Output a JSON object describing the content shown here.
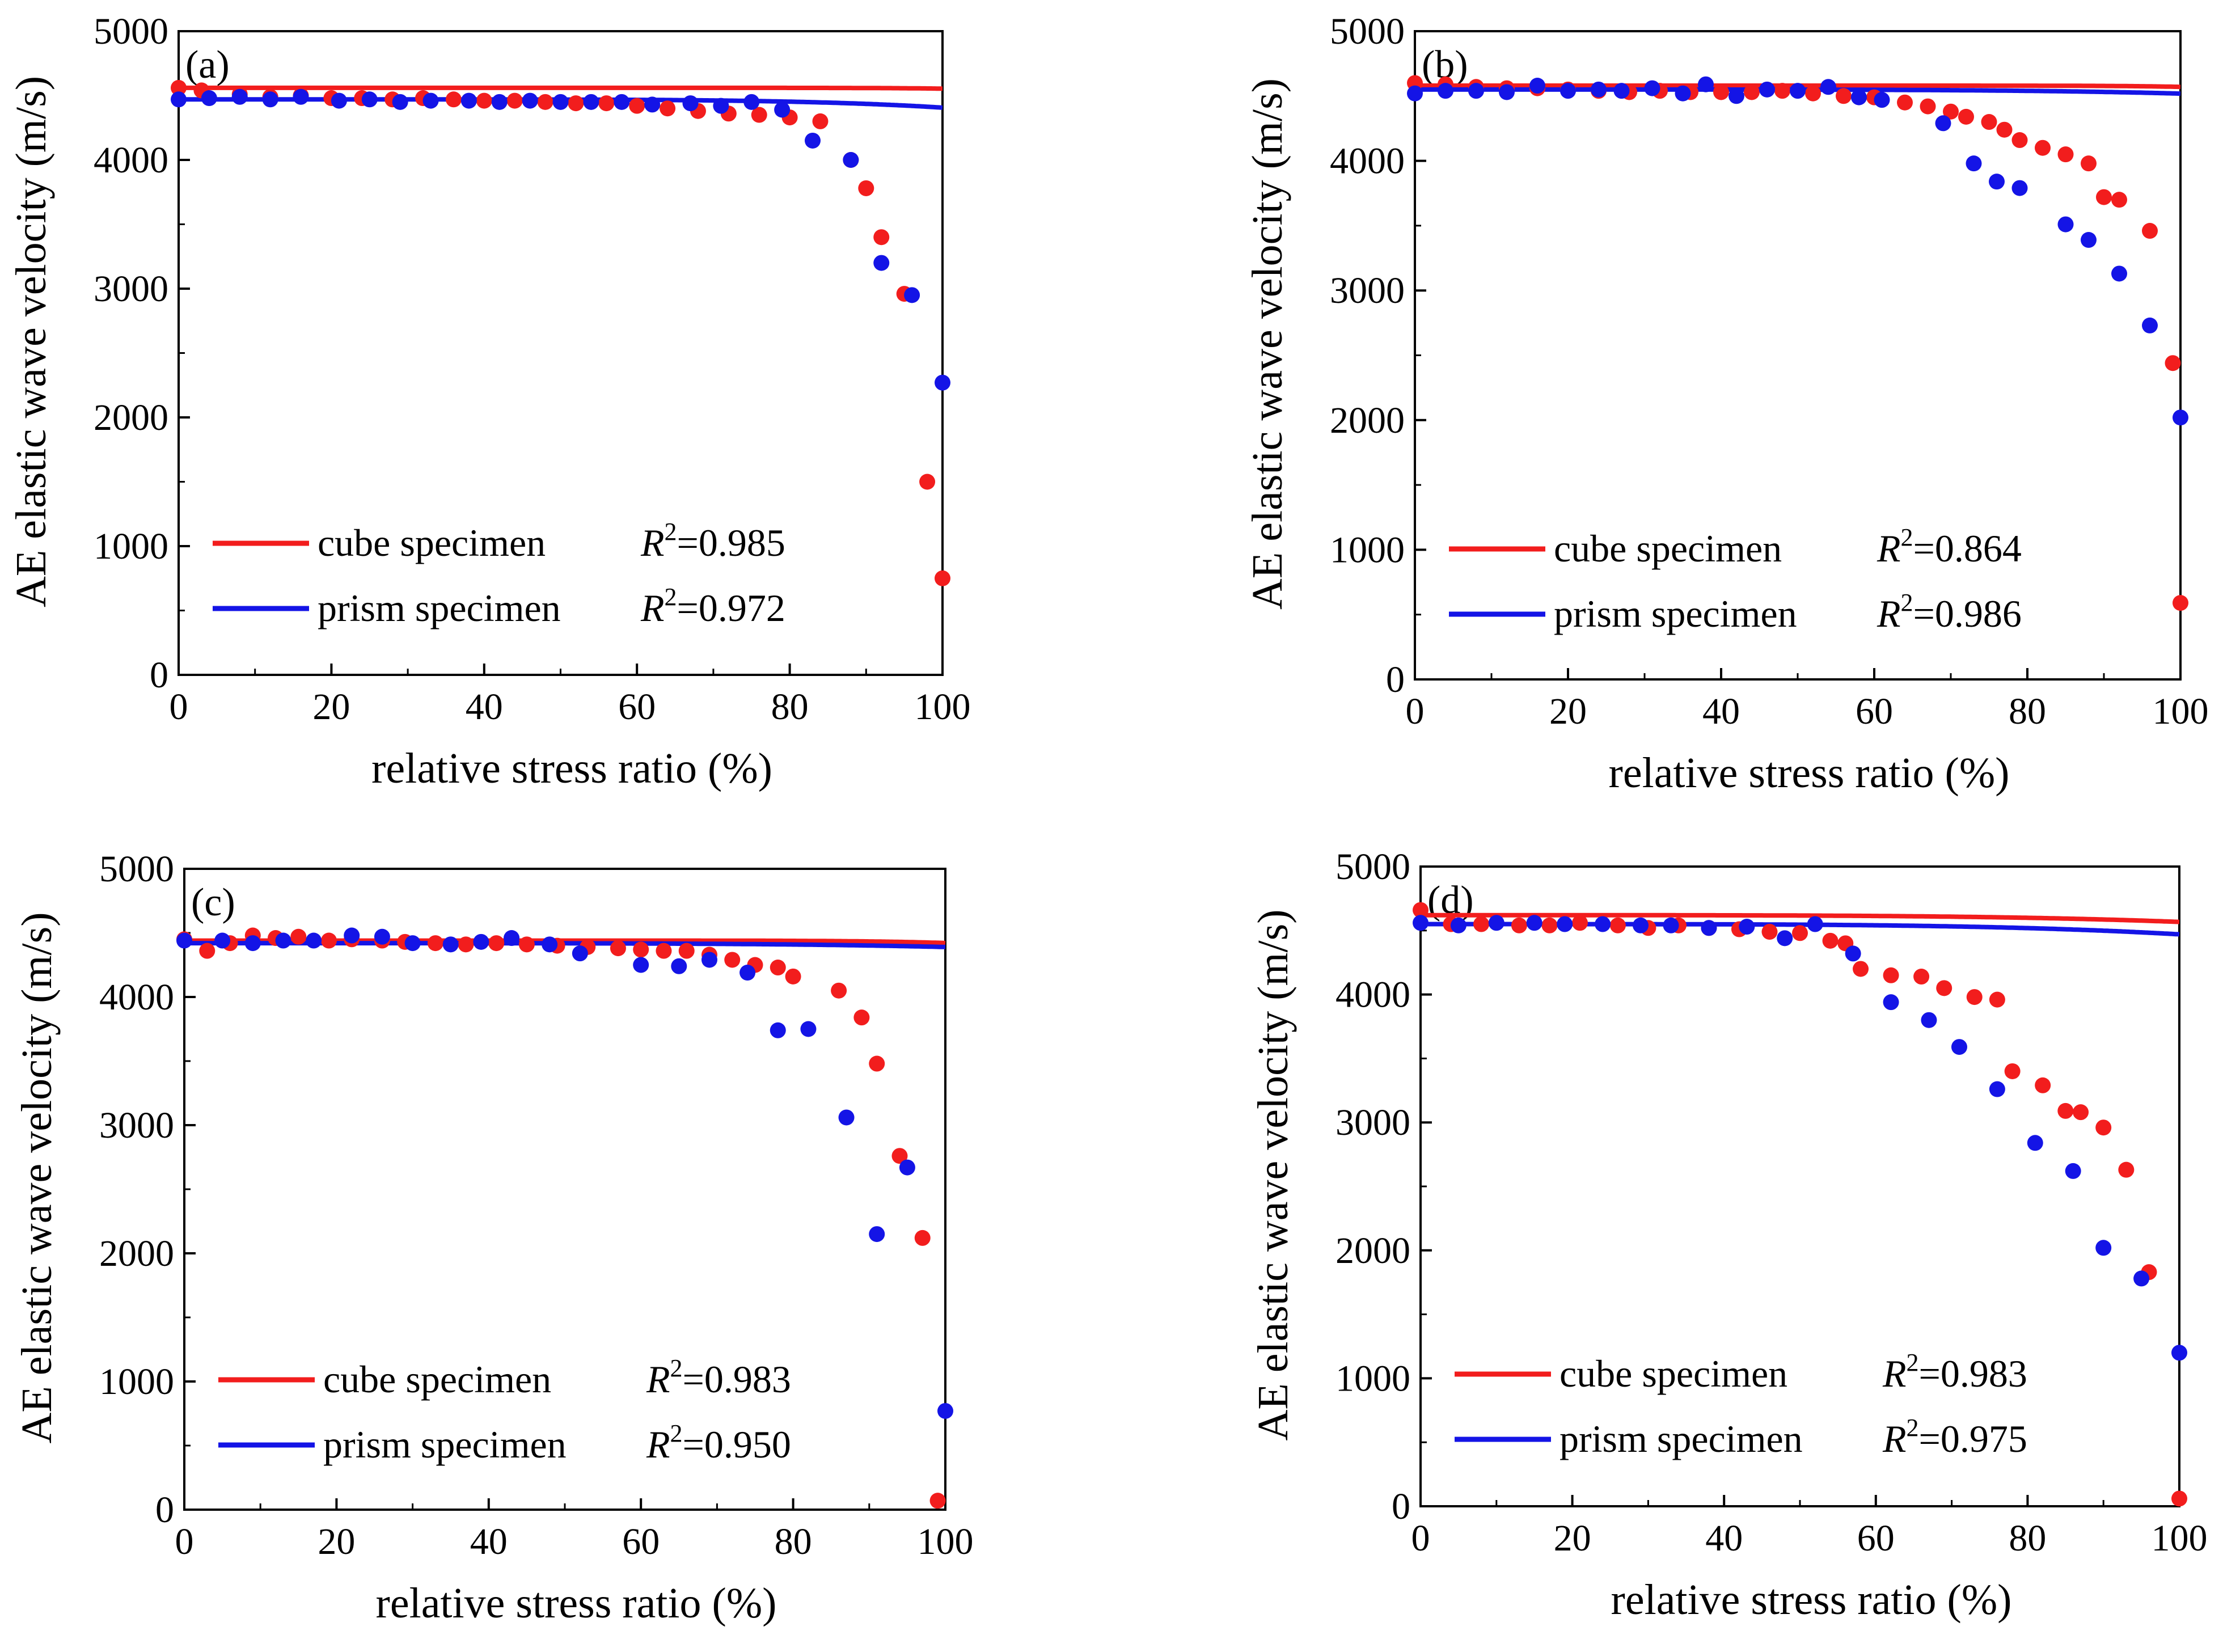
{
  "figure": {
    "colors": {
      "cube": "#f21d1d",
      "prism": "#1414e6",
      "axis": "#000000"
    }
  },
  "chart_data": [
    {
      "type": "scatter",
      "panel_label": "(a)",
      "xlabel": "relative stress ratio (%)",
      "ylabel": "AE elastic wave velocity (m/s)",
      "xlim": [
        0,
        100
      ],
      "ylim": [
        0,
        5000
      ],
      "xticks": [
        0,
        20,
        40,
        60,
        80,
        100
      ],
      "yticks": [
        0,
        1000,
        2000,
        3000,
        4000,
        5000
      ],
      "series": [
        {
          "name": "cube specimen",
          "r2_label": "R",
          "r2_sup": "2",
          "r2_value": "=0.985",
          "color": "#f21d1d",
          "fit": {
            "a": 4560,
            "b": 2.5e-26,
            "n": 13.2
          },
          "points": [
            [
              0,
              4560
            ],
            [
              3,
              4540
            ],
            [
              8,
              4510
            ],
            [
              12,
              4490
            ],
            [
              16,
              4500
            ],
            [
              20,
              4480
            ],
            [
              24,
              4480
            ],
            [
              28,
              4470
            ],
            [
              32,
              4480
            ],
            [
              36,
              4470
            ],
            [
              40,
              4460
            ],
            [
              44,
              4460
            ],
            [
              48,
              4450
            ],
            [
              52,
              4440
            ],
            [
              56,
              4440
            ],
            [
              60,
              4420
            ],
            [
              64,
              4400
            ],
            [
              68,
              4380
            ],
            [
              72,
              4360
            ],
            [
              76,
              4350
            ],
            [
              80,
              4330
            ],
            [
              84,
              4300
            ],
            [
              88,
              4000
            ],
            [
              90,
              3780
            ],
            [
              92,
              3400
            ],
            [
              95,
              2960
            ],
            [
              98,
              1500
            ],
            [
              100,
              750
            ]
          ]
        },
        {
          "name": "prism specimen",
          "r2_label": "R",
          "r2_sup": "2",
          "r2_value": "=0.972",
          "color": "#1414e6",
          "fit": {
            "a": 4470,
            "b": 1.6e-10,
            "n": 5.8
          },
          "points": [
            [
              0,
              4470
            ],
            [
              4,
              4480
            ],
            [
              8,
              4490
            ],
            [
              12,
              4470
            ],
            [
              16,
              4490
            ],
            [
              21,
              4460
            ],
            [
              25,
              4470
            ],
            [
              29,
              4450
            ],
            [
              33,
              4460
            ],
            [
              38,
              4460
            ],
            [
              42,
              4450
            ],
            [
              46,
              4460
            ],
            [
              50,
              4450
            ],
            [
              54,
              4450
            ],
            [
              58,
              4450
            ],
            [
              62,
              4430
            ],
            [
              67,
              4440
            ],
            [
              71,
              4420
            ],
            [
              75,
              4450
            ],
            [
              79,
              4390
            ],
            [
              83,
              4150
            ],
            [
              88,
              4000
            ],
            [
              92,
              3200
            ],
            [
              96,
              2950
            ],
            [
              100,
              2270
            ]
          ]
        }
      ]
    },
    {
      "type": "scatter",
      "panel_label": "(b)",
      "xlabel": "relative stress ratio (%)",
      "ylabel": "AE elastic wave velocity (m/s)",
      "xlim": [
        0,
        100
      ],
      "ylim": [
        0,
        5000
      ],
      "xticks": [
        0,
        20,
        40,
        60,
        80,
        100
      ],
      "yticks": [
        0,
        1000,
        2000,
        3000,
        4000,
        5000
      ],
      "series": [
        {
          "name": "cube specimen",
          "r2_label": "R",
          "r2_sup": "2",
          "r2_value": "=0.864",
          "color": "#f21d1d",
          "fit": {
            "a": 4580,
            "b": 1.5e-26,
            "n": 13.4
          },
          "points": [
            [
              0,
              4600
            ],
            [
              4,
              4590
            ],
            [
              8,
              4570
            ],
            [
              12,
              4560
            ],
            [
              16,
              4560
            ],
            [
              20,
              4550
            ],
            [
              24,
              4540
            ],
            [
              28,
              4530
            ],
            [
              32,
              4540
            ],
            [
              36,
              4530
            ],
            [
              40,
              4530
            ],
            [
              44,
              4530
            ],
            [
              48,
              4540
            ],
            [
              52,
              4520
            ],
            [
              56,
              4500
            ],
            [
              60,
              4490
            ],
            [
              64,
              4450
            ],
            [
              67,
              4420
            ],
            [
              70,
              4380
            ],
            [
              72,
              4340
            ],
            [
              75,
              4300
            ],
            [
              77,
              4240
            ],
            [
              79,
              4160
            ],
            [
              82,
              4100
            ],
            [
              85,
              4050
            ],
            [
              88,
              3980
            ],
            [
              90,
              3720
            ],
            [
              92,
              3700
            ],
            [
              96,
              3460
            ],
            [
              99,
              2440
            ],
            [
              100,
              590
            ]
          ]
        },
        {
          "name": "prism specimen",
          "r2_label": "R",
          "r2_sup": "2",
          "r2_value": "=0.986",
          "color": "#1414e6",
          "fit": {
            "a": 4550,
            "b": 2.5e-09,
            "n": 5.05
          },
          "points": [
            [
              0,
              4520
            ],
            [
              4,
              4540
            ],
            [
              8,
              4540
            ],
            [
              12,
              4530
            ],
            [
              16,
              4580
            ],
            [
              20,
              4540
            ],
            [
              24,
              4550
            ],
            [
              27,
              4540
            ],
            [
              31,
              4560
            ],
            [
              35,
              4520
            ],
            [
              38,
              4590
            ],
            [
              42,
              4500
            ],
            [
              46,
              4550
            ],
            [
              50,
              4540
            ],
            [
              54,
              4570
            ],
            [
              58,
              4490
            ],
            [
              61,
              4470
            ],
            [
              69,
              4290
            ],
            [
              73,
              3980
            ],
            [
              76,
              3840
            ],
            [
              79,
              3790
            ],
            [
              85,
              3510
            ],
            [
              88,
              3390
            ],
            [
              92,
              3130
            ],
            [
              96,
              2730
            ],
            [
              100,
              2020
            ]
          ]
        }
      ]
    },
    {
      "type": "scatter",
      "panel_label": "(c)",
      "xlabel": "relative stress ratio (%)",
      "ylabel": "AE elastic wave velocity (m/s)",
      "xlim": [
        0,
        100
      ],
      "ylim": [
        0,
        5000
      ],
      "xticks": [
        0,
        20,
        40,
        60,
        80,
        100
      ],
      "yticks": [
        0,
        1000,
        2000,
        3000,
        4000,
        5000
      ],
      "series": [
        {
          "name": "cube specimen",
          "r2_label": "R",
          "r2_sup": "2",
          "r2_value": "=0.983",
          "color": "#f21d1d",
          "fit": {
            "a": 4440,
            "b": 1.9e-19,
            "n": 10.0
          },
          "points": [
            [
              0,
              4450
            ],
            [
              3,
              4360
            ],
            [
              6,
              4420
            ],
            [
              9,
              4480
            ],
            [
              12,
              4460
            ],
            [
              15,
              4470
            ],
            [
              19,
              4440
            ],
            [
              22,
              4450
            ],
            [
              26,
              4440
            ],
            [
              29,
              4430
            ],
            [
              33,
              4420
            ],
            [
              37,
              4410
            ],
            [
              41,
              4420
            ],
            [
              45,
              4410
            ],
            [
              49,
              4400
            ],
            [
              53,
              4390
            ],
            [
              57,
              4380
            ],
            [
              60,
              4370
            ],
            [
              63,
              4360
            ],
            [
              66,
              4360
            ],
            [
              69,
              4330
            ],
            [
              72,
              4290
            ],
            [
              75,
              4250
            ],
            [
              78,
              4230
            ],
            [
              80,
              4160
            ],
            [
              86,
              4050
            ],
            [
              89,
              3840
            ],
            [
              91,
              3480
            ],
            [
              94,
              2760
            ],
            [
              97,
              2120
            ],
            [
              99,
              70
            ]
          ]
        },
        {
          "name": "prism specimen",
          "r2_label": "R",
          "r2_sup": "2",
          "r2_value": "=0.950",
          "color": "#1414e6",
          "fit": {
            "a": 4420,
            "b": 1.2e-08,
            "n": 4.7
          },
          "points": [
            [
              0,
              4440
            ],
            [
              5,
              4440
            ],
            [
              9,
              4420
            ],
            [
              13,
              4440
            ],
            [
              17,
              4440
            ],
            [
              22,
              4480
            ],
            [
              26,
              4470
            ],
            [
              30,
              4420
            ],
            [
              35,
              4410
            ],
            [
              39,
              4430
            ],
            [
              43,
              4460
            ],
            [
              48,
              4410
            ],
            [
              52,
              4340
            ],
            [
              60,
              4250
            ],
            [
              65,
              4240
            ],
            [
              69,
              4290
            ],
            [
              74,
              4190
            ],
            [
              78,
              3740
            ],
            [
              82,
              3750
            ],
            [
              87,
              3060
            ],
            [
              91,
              2150
            ],
            [
              95,
              2670
            ],
            [
              100,
              770
            ]
          ]
        }
      ]
    },
    {
      "type": "scatter",
      "panel_label": "(d)",
      "xlabel": "relative stress ratio (%)",
      "ylabel": "AE elastic wave velocity (m/s)",
      "xlim": [
        0,
        100
      ],
      "ylim": [
        0,
        5000
      ],
      "xticks": [
        0,
        20,
        40,
        60,
        80,
        100
      ],
      "yticks": [
        0,
        1000,
        2000,
        3000,
        4000,
        5000
      ],
      "series": [
        {
          "name": "cube specimen",
          "r2_label": "R",
          "r2_sup": "2",
          "r2_value": "=0.983",
          "color": "#f21d1d",
          "fit": {
            "a": 4620,
            "b": 2.1e-07,
            "n": 4.2
          },
          "points": [
            [
              0,
              4660
            ],
            [
              4,
              4550
            ],
            [
              8,
              4550
            ],
            [
              13,
              4540
            ],
            [
              17,
              4540
            ],
            [
              21,
              4560
            ],
            [
              26,
              4540
            ],
            [
              30,
              4520
            ],
            [
              34,
              4540
            ],
            [
              38,
              4520
            ],
            [
              42,
              4510
            ],
            [
              46,
              4490
            ],
            [
              50,
              4480
            ],
            [
              54,
              4420
            ],
            [
              56,
              4400
            ],
            [
              58,
              4200
            ],
            [
              62,
              4150
            ],
            [
              66,
              4140
            ],
            [
              69,
              4050
            ],
            [
              73,
              3980
            ],
            [
              76,
              3960
            ],
            [
              78,
              3400
            ],
            [
              82,
              3290
            ],
            [
              85,
              3090
            ],
            [
              87,
              3080
            ],
            [
              90,
              2960
            ],
            [
              93,
              2630
            ],
            [
              96,
              1830
            ],
            [
              100,
              60
            ]
          ]
        },
        {
          "name": "prism specimen",
          "r2_label": "R",
          "r2_sup": "2",
          "r2_value": "=0.975",
          "color": "#1414e6",
          "fit": {
            "a": 4550,
            "b": 2.9e-07,
            "n": 4.22
          },
          "points": [
            [
              0,
              4560
            ],
            [
              5,
              4540
            ],
            [
              10,
              4560
            ],
            [
              15,
              4560
            ],
            [
              19,
              4550
            ],
            [
              24,
              4550
            ],
            [
              29,
              4540
            ],
            [
              33,
              4540
            ],
            [
              38,
              4520
            ],
            [
              43,
              4530
            ],
            [
              48,
              4440
            ],
            [
              52,
              4550
            ],
            [
              57,
              4320
            ],
            [
              62,
              3940
            ],
            [
              67,
              3800
            ],
            [
              71,
              3590
            ],
            [
              76,
              3260
            ],
            [
              81,
              2840
            ],
            [
              86,
              2620
            ],
            [
              90,
              2020
            ],
            [
              95,
              1780
            ],
            [
              100,
              1200
            ]
          ]
        }
      ]
    }
  ]
}
